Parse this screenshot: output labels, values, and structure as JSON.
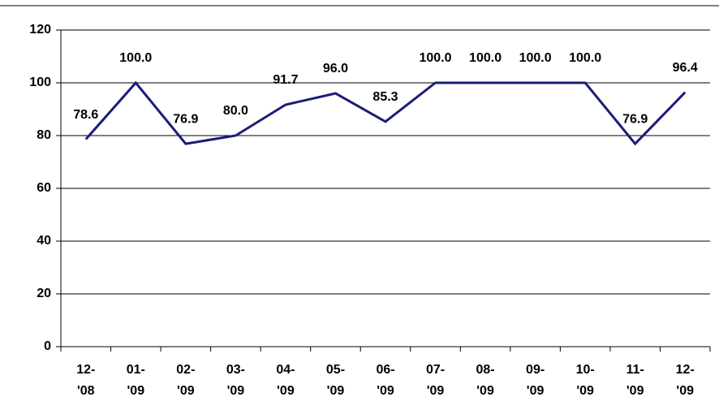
{
  "chart_data": {
    "type": "line",
    "categories": [
      "12-\n'08",
      "01-\n'09",
      "02-\n'09",
      "03-\n'09",
      "04-\n'09",
      "05-\n'09",
      "06-\n'09",
      "07-\n'09",
      "08-\n'09",
      "09-\n'09",
      "10-\n'09",
      "11-\n'09",
      "12-\n'09"
    ],
    "series": [
      {
        "color": "#1c1c78",
        "values": [
          78.6,
          100,
          76.9,
          80,
          91.7,
          96,
          85.3,
          100,
          100,
          100,
          100,
          76.9,
          96.4
        ],
        "value_labels": [
          "78.6",
          "100.0",
          "76.9",
          "80.0",
          "91.7",
          "96.0",
          "85.3",
          "100.0",
          "100.0",
          "100.0",
          "100.0",
          "76.9",
          "96.4"
        ]
      }
    ],
    "ylim": [
      0,
      120
    ],
    "yticks": [
      0,
      20,
      40,
      60,
      80,
      100,
      120
    ],
    "grid": true
  }
}
